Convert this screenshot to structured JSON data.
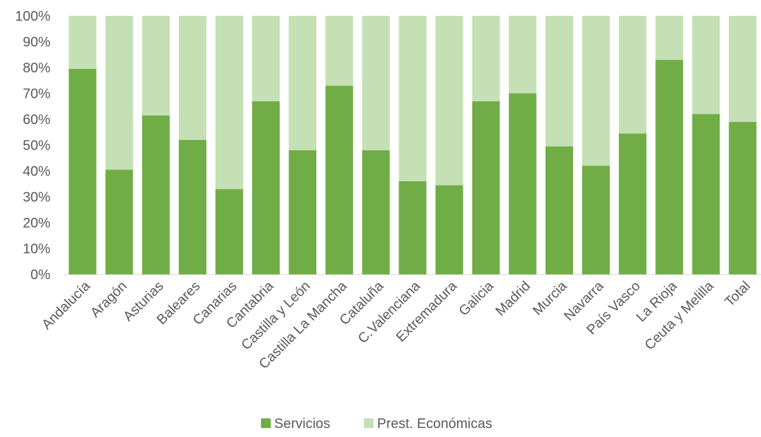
{
  "chart_data": {
    "type": "bar",
    "stacked": true,
    "percent": true,
    "categories": [
      "Andalucía",
      "Aragón",
      "Asturias",
      "Baleares",
      "Canarias",
      "Cantabria",
      "Castilla y León",
      "Castilla La Mancha",
      "Cataluña",
      "C.Valenciana",
      "Extremadura",
      "Galicia",
      "Madrid",
      "Murcia",
      "Navarra",
      "País Vasco",
      "La Rioja",
      "Ceuta y Melilla",
      "Total"
    ],
    "series": [
      {
        "name": "Servicios",
        "color": "#70ad47",
        "values": [
          79.5,
          40.5,
          61.5,
          52,
          33,
          67,
          48,
          73,
          48,
          36,
          34.5,
          67,
          70,
          49.5,
          42,
          54.5,
          83,
          62,
          59
        ]
      },
      {
        "name": "Prest. Económicas",
        "color": "#c5e0b4",
        "values": [
          20.5,
          59.5,
          38.5,
          48,
          67,
          33,
          52,
          27,
          52,
          64,
          65.5,
          33,
          30,
          50.5,
          58,
          45.5,
          17,
          38,
          41
        ]
      }
    ],
    "yticks": [
      "0%",
      "10%",
      "20%",
      "30%",
      "40%",
      "50%",
      "60%",
      "70%",
      "80%",
      "90%",
      "100%"
    ],
    "ylim": [
      0,
      100
    ],
    "grid": false,
    "legend_position": "bottom"
  }
}
